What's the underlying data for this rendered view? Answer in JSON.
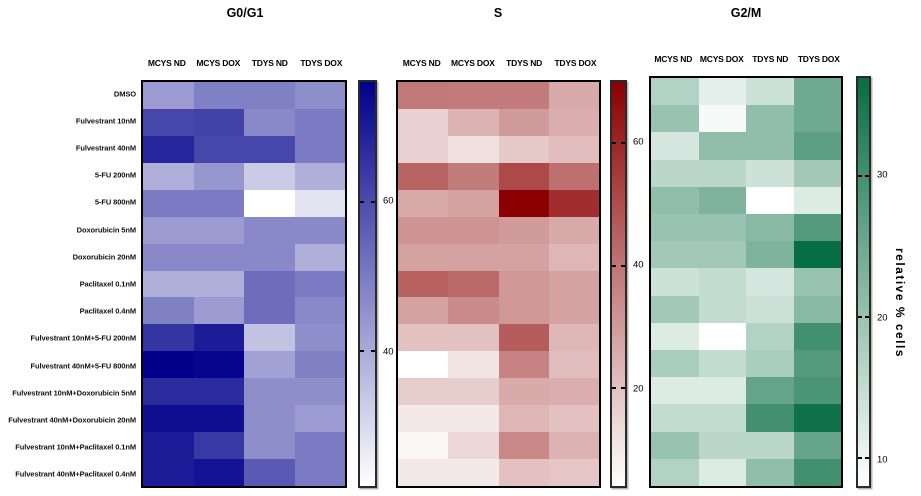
{
  "figure": {
    "ylabel": "relative % cells"
  },
  "chart_data": [
    {
      "type": "heatmap",
      "title": "G0/G1",
      "columns": [
        "MCYS ND",
        "MCYS DOX",
        "TDYS ND",
        "TDYS DOX"
      ],
      "rows": [
        "DMSO",
        "Fulvestrant 10nM",
        "Fulvestrant 40nM",
        "5-FU 200nM",
        "5-FU 800nM",
        "Doxorubicin 5nM",
        "Doxorubicin 20nM",
        "Paclitaxel 0.1nM",
        "Paclitaxel 0.4nM",
        "Fulvestrant 10nM+5-FU 200nM",
        "Fulvestrant 40nM+5-FU 800nM",
        "Fulvestrant 10nM+Doxorubicin 5nM",
        "Fulvestrant 40nM+Doxorubicin 20nM",
        "Fulvestrant 10nM+Paclitaxel 0.1nM",
        "Fulvestrant 40nM+Paclitaxel 0.4nM"
      ],
      "unit": "relative % cells",
      "vmin": 22,
      "vmax": 76,
      "min_color": "#ffffff",
      "max_color": "#00008b",
      "colorbar_ticks": [
        60,
        40
      ],
      "values": [
        [
          43,
          49,
          49,
          46
        ],
        [
          61,
          62,
          47,
          50
        ],
        [
          68,
          61,
          61,
          50
        ],
        [
          39,
          44,
          33,
          39
        ],
        [
          50,
          50,
          22,
          28
        ],
        [
          43,
          43,
          47,
          47
        ],
        [
          47,
          47,
          47,
          39
        ],
        [
          39,
          39,
          53,
          50
        ],
        [
          49,
          43,
          53,
          47
        ],
        [
          65,
          70,
          35,
          46
        ],
        [
          76,
          75,
          42,
          49
        ],
        [
          67,
          67,
          46,
          46
        ],
        [
          73,
          73,
          46,
          43
        ],
        [
          70,
          64,
          46,
          50
        ],
        [
          70,
          72,
          57,
          50
        ]
      ]
    },
    {
      "type": "heatmap",
      "title": "S",
      "columns": [
        "MCYS ND",
        "MCYS DOX",
        "TDYS ND",
        "TDYS DOX"
      ],
      "rows": [
        "DMSO",
        "Fulvestrant 10nM",
        "Fulvestrant 40nM",
        "5-FU 200nM",
        "5-FU 800nM",
        "Doxorubicin 5nM",
        "Doxorubicin 20nM",
        "Paclitaxel 0.1nM",
        "Paclitaxel 0.4nM",
        "Fulvestrant 10nM+5-FU 200nM",
        "Fulvestrant 40nM+5-FU 800nM",
        "Fulvestrant 10nM+Doxorubicin 5nM",
        "Fulvestrant 40nM+Doxorubicin 20nM",
        "Fulvestrant 10nM+Paclitaxel 0.1nM",
        "Fulvestrant 40nM+Paclitaxel 0.4nM"
      ],
      "unit": "relative % cells",
      "vmin": 4,
      "vmax": 70,
      "min_color": "#ffffff",
      "max_color": "#8b0000",
      "colorbar_ticks": [
        60,
        40,
        20
      ],
      "values": [
        [
          39,
          38,
          38,
          26
        ],
        [
          16,
          24,
          30,
          25
        ],
        [
          16,
          12,
          18,
          21
        ],
        [
          44,
          38,
          51,
          41
        ],
        [
          26,
          28,
          70,
          58
        ],
        [
          32,
          32,
          30,
          26
        ],
        [
          28,
          28,
          28,
          23
        ],
        [
          45,
          43,
          31,
          28
        ],
        [
          28,
          34,
          31,
          28
        ],
        [
          20,
          20,
          46,
          23
        ],
        [
          4,
          11,
          36,
          21
        ],
        [
          17,
          17,
          26,
          25
        ],
        [
          10,
          10,
          23,
          20
        ],
        [
          6,
          14,
          35,
          24
        ],
        [
          10,
          10,
          20,
          19
        ]
      ]
    },
    {
      "type": "heatmap",
      "title": "G2/M",
      "columns": [
        "MCYS ND",
        "MCYS DOX",
        "TDYS ND",
        "TDYS DOX"
      ],
      "rows": [
        "DMSO",
        "Fulvestrant 10nM",
        "Fulvestrant 40nM",
        "5-FU 200nM",
        "5-FU 800nM",
        "Doxorubicin 5nM",
        "Doxorubicin 20nM",
        "Paclitaxel 0.1nM",
        "Paclitaxel 0.4nM",
        "Fulvestrant 10nM+5-FU 200nM",
        "Fulvestrant 40nM+5-FU 800nM",
        "Fulvestrant 10nM+Doxorubicin 5nM",
        "Fulvestrant 40nM+Doxorubicin 20nM",
        "Fulvestrant 10nM+Paclitaxel 0.1nM",
        "Fulvestrant 40nM+Paclitaxel 0.4nM"
      ],
      "unit": "relative % cells",
      "vmin": 8,
      "vmax": 37,
      "min_color": "#ffffff",
      "max_color": "#076d43",
      "colorbar_ticks": [
        30,
        20,
        10
      ],
      "values": [
        [
          17,
          11,
          14,
          25
        ],
        [
          20,
          9,
          21,
          25
        ],
        [
          13,
          21,
          21,
          27
        ],
        [
          16,
          16,
          14,
          19
        ],
        [
          21,
          23,
          8,
          12
        ],
        [
          20,
          20,
          22,
          28
        ],
        [
          19,
          19,
          23,
          37
        ],
        [
          14,
          15,
          13,
          20
        ],
        [
          19,
          15,
          14,
          22
        ],
        [
          12,
          8,
          17,
          30
        ],
        [
          18,
          15,
          18,
          28
        ],
        [
          12,
          12,
          26,
          29
        ],
        [
          15,
          15,
          30,
          36
        ],
        [
          20,
          16,
          16,
          26
        ],
        [
          17,
          12,
          21,
          30
        ]
      ]
    }
  ]
}
